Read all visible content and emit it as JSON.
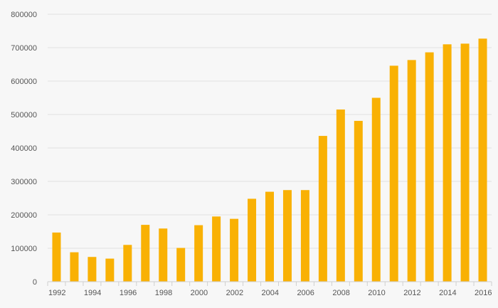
{
  "colors": {
    "bar": "#F9B104",
    "background": "#F7F7F7",
    "grid": "#E2E2E2",
    "axis_text": "#555555"
  },
  "chart_data": {
    "type": "bar",
    "title": "",
    "xlabel": "",
    "ylabel": "",
    "categories": [
      "1992",
      "1993",
      "1994",
      "1995",
      "1996",
      "1997",
      "1998",
      "1999",
      "2000",
      "2001",
      "2002",
      "2003",
      "2004",
      "2005",
      "2006",
      "2007",
      "2008",
      "2009",
      "2010",
      "2011",
      "2012",
      "2013",
      "2014",
      "2015",
      "2016"
    ],
    "values": [
      147000,
      88000,
      74000,
      69000,
      110000,
      170000,
      159000,
      101000,
      169000,
      195000,
      188000,
      248000,
      269000,
      274000,
      274000,
      436000,
      515000,
      481000,
      550000,
      646000,
      663000,
      686000,
      710000,
      712000,
      727000
    ],
    "x_tick_labels": [
      "1992",
      "1994",
      "1996",
      "1998",
      "2000",
      "2002",
      "2004",
      "2006",
      "2008",
      "2010",
      "2012",
      "2014",
      "2016"
    ],
    "y_ticks": [
      0,
      100000,
      200000,
      300000,
      400000,
      500000,
      600000,
      700000,
      800000
    ],
    "y_tick_labels": [
      "0",
      "100000",
      "200000",
      "300000",
      "400000",
      "500000",
      "600000",
      "700000",
      "800000"
    ],
    "ylim": [
      0,
      800000
    ],
    "grid": true,
    "legend": "none"
  }
}
